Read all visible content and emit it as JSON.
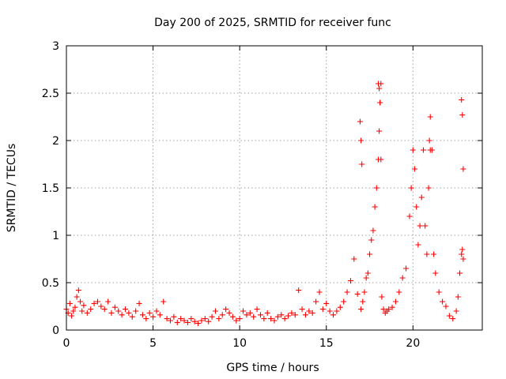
{
  "chart_data": {
    "type": "scatter",
    "title": "Day 200 of 2025, SRMTID for receiver func",
    "xlabel": "GPS time / hours",
    "ylabel": "SRMTID / TECUs",
    "xlim": [
      0,
      24.0
    ],
    "ylim": [
      0,
      3
    ],
    "xticks": [
      0,
      5,
      10,
      15,
      20
    ],
    "xtick_labels": [
      "0",
      "5",
      "10",
      "15",
      "20"
    ],
    "yticks": [
      0,
      0.5,
      1,
      1.5,
      2,
      2.5,
      3
    ],
    "ytick_labels": [
      "0",
      "0.5",
      "1",
      "1.5",
      "2",
      "2.5",
      "3"
    ],
    "grid": true,
    "marker": "+",
    "series": [
      {
        "name": "SRMTID",
        "color": "#ff0000",
        "x": [
          0.0,
          0.1,
          0.2,
          0.3,
          0.4,
          0.5,
          0.6,
          0.7,
          0.8,
          0.9,
          1.0,
          1.2,
          1.4,
          1.6,
          1.8,
          2.0,
          2.2,
          2.4,
          2.6,
          2.8,
          3.0,
          3.2,
          3.4,
          3.6,
          3.8,
          4.0,
          4.2,
          4.4,
          4.6,
          4.8,
          5.0,
          5.2,
          5.4,
          5.6,
          5.8,
          6.0,
          6.2,
          6.4,
          6.6,
          6.8,
          7.0,
          7.2,
          7.4,
          7.6,
          7.8,
          8.0,
          8.2,
          8.4,
          8.6,
          8.8,
          9.0,
          9.2,
          9.4,
          9.6,
          9.8,
          10.0,
          10.2,
          10.4,
          10.6,
          10.8,
          11.0,
          11.2,
          11.4,
          11.6,
          11.8,
          12.0,
          12.2,
          12.4,
          12.6,
          12.8,
          13.0,
          13.2,
          13.4,
          13.6,
          13.8,
          14.0,
          14.2,
          14.4,
          14.6,
          14.8,
          15.0,
          15.2,
          15.4,
          15.6,
          15.8,
          16.0,
          16.2,
          16.4,
          16.6,
          16.8,
          17.0,
          17.1,
          17.2,
          17.3,
          17.4,
          17.5,
          17.6,
          17.7,
          17.8,
          17.9,
          18.0,
          18.05,
          18.1,
          18.15,
          18.2,
          18.3,
          18.4,
          18.5,
          18.6,
          18.8,
          19.0,
          19.2,
          19.4,
          19.6,
          19.8,
          19.9,
          20.0,
          20.1,
          20.2,
          20.3,
          20.4,
          20.5,
          20.6,
          20.7,
          20.8,
          20.9,
          21.0,
          21.1,
          21.2,
          21.3,
          21.5,
          21.7,
          21.9,
          22.1,
          22.3,
          22.5,
          22.6,
          22.7,
          22.8,
          22.85,
          22.9,
          16.95,
          17.0,
          17.05,
          18.0,
          18.05,
          18.1,
          18.15,
          20.95,
          21.0,
          22.8,
          22.85,
          22.9
        ],
        "values": [
          0.22,
          0.18,
          0.28,
          0.15,
          0.2,
          0.24,
          0.35,
          0.42,
          0.3,
          0.2,
          0.26,
          0.18,
          0.22,
          0.28,
          0.3,
          0.25,
          0.22,
          0.3,
          0.18,
          0.24,
          0.2,
          0.16,
          0.22,
          0.18,
          0.14,
          0.2,
          0.28,
          0.16,
          0.12,
          0.18,
          0.14,
          0.2,
          0.16,
          0.3,
          0.12,
          0.1,
          0.14,
          0.08,
          0.12,
          0.1,
          0.08,
          0.12,
          0.09,
          0.07,
          0.1,
          0.12,
          0.09,
          0.14,
          0.2,
          0.12,
          0.16,
          0.22,
          0.18,
          0.14,
          0.1,
          0.12,
          0.2,
          0.16,
          0.18,
          0.14,
          0.22,
          0.16,
          0.12,
          0.18,
          0.12,
          0.1,
          0.14,
          0.16,
          0.12,
          0.15,
          0.18,
          0.16,
          0.42,
          0.22,
          0.16,
          0.2,
          0.18,
          0.3,
          0.4,
          0.22,
          0.28,
          0.2,
          0.16,
          0.2,
          0.24,
          0.3,
          0.4,
          0.52,
          0.75,
          0.38,
          0.22,
          0.3,
          0.4,
          0.55,
          0.6,
          0.8,
          0.95,
          1.05,
          1.3,
          1.5,
          1.8,
          2.1,
          2.4,
          2.6,
          0.35,
          0.22,
          0.18,
          0.2,
          0.22,
          0.24,
          0.3,
          0.4,
          0.55,
          0.65,
          1.2,
          1.5,
          1.9,
          1.7,
          1.3,
          0.9,
          1.1,
          1.4,
          1.9,
          1.1,
          0.8,
          1.5,
          2.25,
          1.9,
          0.8,
          0.6,
          0.4,
          0.3,
          0.25,
          0.15,
          0.12,
          0.2,
          0.35,
          0.6,
          0.8,
          0.85,
          0.75,
          2.2,
          2.0,
          1.75,
          2.6,
          2.55,
          2.4,
          1.8,
          2.0,
          1.9,
          2.43,
          2.27,
          1.7
        ]
      }
    ]
  }
}
